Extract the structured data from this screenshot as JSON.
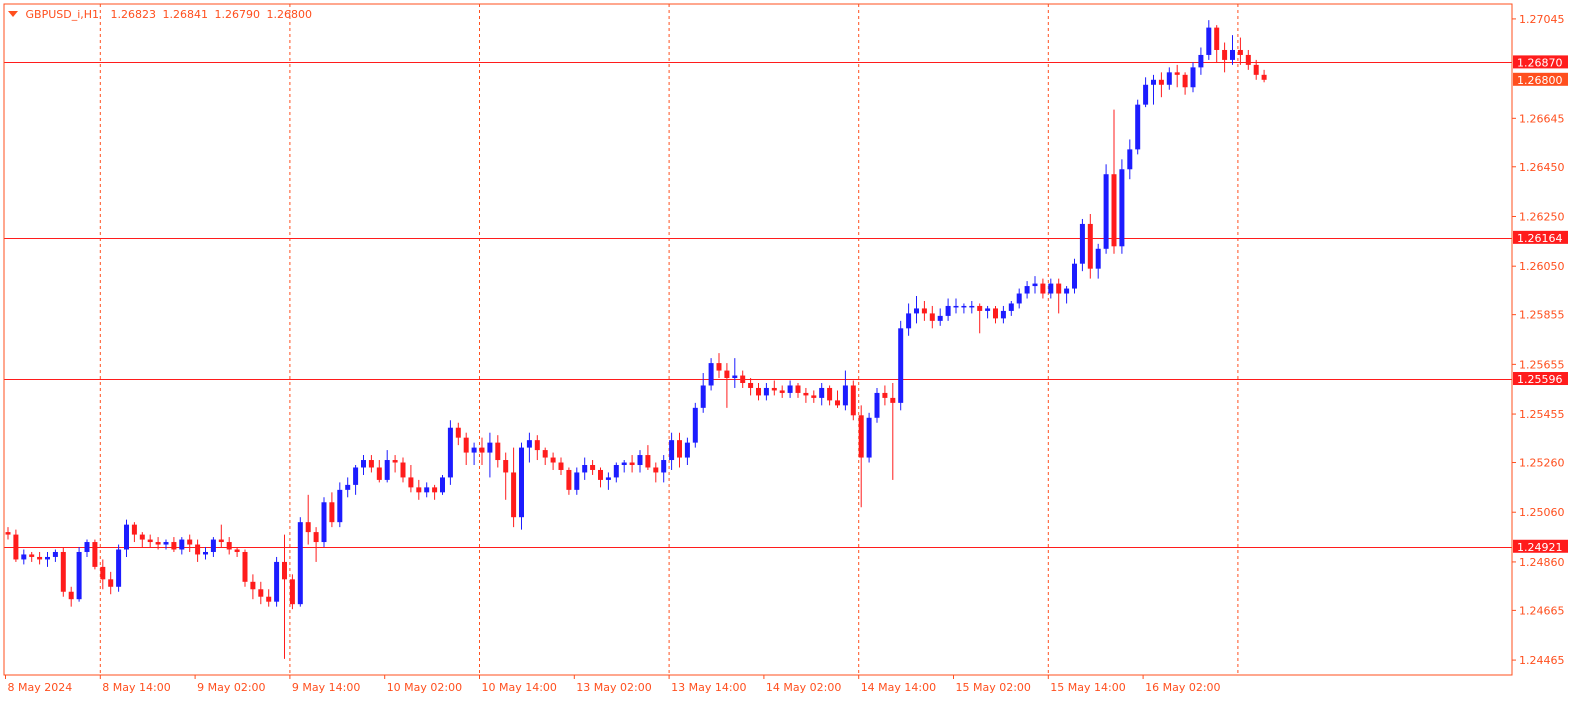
{
  "header": {
    "symbol": "GBPUSD_i,H1",
    "open": "1.26823",
    "high": "1.26841",
    "low": "1.26790",
    "close": "1.26800"
  },
  "colors": {
    "background": "#ffffff",
    "frame": "#ff4f1e",
    "grid": "#ff4f1e",
    "bull": "#1c1cff",
    "bear": "#ff1c1c",
    "axis_text": "#ff4f1e",
    "hline": "#ff1c1c",
    "price_tag": "#ff1c1c"
  },
  "chart_data": {
    "type": "candlestick",
    "timeframe": "H1",
    "ylim": [
      1.24405,
      1.27105
    ],
    "price_ticks": [
      "1.27045",
      "1.26645",
      "1.26450",
      "1.26250",
      "1.26050",
      "1.25855",
      "1.25655",
      "1.25455",
      "1.25260",
      "1.25060",
      "1.24860",
      "1.24665",
      "1.24465"
    ],
    "time_labels": [
      "8 May 2024",
      "8 May 14:00",
      "9 May 02:00",
      "9 May 14:00",
      "10 May 02:00",
      "10 May 14:00",
      "13 May 02:00",
      "13 May 14:00",
      "14 May 02:00",
      "14 May 14:00",
      "15 May 02:00",
      "15 May 14:00",
      "16 May 02:00"
    ],
    "vertical_grid_after_labels": [
      1,
      3,
      5,
      7,
      9,
      11,
      13
    ],
    "horizontal_levels": [
      "1.26870",
      "1.26164",
      "1.25596",
      "1.24921"
    ],
    "current_price": "1.26800",
    "candles": [
      [
        1.2498,
        1.25,
        1.2495,
        1.2497
      ],
      [
        1.2497,
        1.2499,
        1.2486,
        1.2487
      ],
      [
        1.2487,
        1.2491,
        1.2485,
        1.2489
      ],
      [
        1.2489,
        1.249,
        1.2486,
        1.2488
      ],
      [
        1.2488,
        1.249,
        1.2485,
        1.2487
      ],
      [
        1.2487,
        1.249,
        1.2484,
        1.2488
      ],
      [
        1.2488,
        1.2491,
        1.2486,
        1.249
      ],
      [
        1.249,
        1.2492,
        1.2472,
        1.2474
      ],
      [
        1.2474,
        1.2476,
        1.2468,
        1.2471
      ],
      [
        1.2471,
        1.2492,
        1.247,
        1.249
      ],
      [
        1.249,
        1.2495,
        1.2488,
        1.2494
      ],
      [
        1.2494,
        1.2495,
        1.2483,
        1.2484
      ],
      [
        1.2484,
        1.2487,
        1.2475,
        1.2479
      ],
      [
        1.2479,
        1.2482,
        1.2473,
        1.2476
      ],
      [
        1.2476,
        1.2493,
        1.2474,
        1.2491
      ],
      [
        1.2491,
        1.2503,
        1.2488,
        1.2501
      ],
      [
        1.2501,
        1.2502,
        1.2494,
        1.2497
      ],
      [
        1.2497,
        1.2498,
        1.2492,
        1.2495
      ],
      [
        1.2495,
        1.2497,
        1.2492,
        1.2494
      ],
      [
        1.2494,
        1.2496,
        1.2491,
        1.2493
      ],
      [
        1.2493,
        1.2495,
        1.2491,
        1.2494
      ],
      [
        1.2494,
        1.2496,
        1.249,
        1.2491
      ],
      [
        1.2491,
        1.2496,
        1.2489,
        1.2495
      ],
      [
        1.2495,
        1.2497,
        1.249,
        1.2493
      ],
      [
        1.2493,
        1.2495,
        1.2486,
        1.2489
      ],
      [
        1.2489,
        1.2492,
        1.2487,
        1.249
      ],
      [
        1.249,
        1.2496,
        1.2488,
        1.2495
      ],
      [
        1.2495,
        1.2501,
        1.2492,
        1.2494
      ],
      [
        1.2494,
        1.2496,
        1.2489,
        1.2491
      ],
      [
        1.2491,
        1.2492,
        1.2488,
        1.249
      ],
      [
        1.249,
        1.2491,
        1.2476,
        1.2478
      ],
      [
        1.2478,
        1.2481,
        1.2471,
        1.2475
      ],
      [
        1.2475,
        1.2478,
        1.2469,
        1.2472
      ],
      [
        1.2472,
        1.2475,
        1.2468,
        1.247
      ],
      [
        1.247,
        1.2488,
        1.2468,
        1.2486
      ],
      [
        1.2486,
        1.2497,
        1.2447,
        1.2479
      ],
      [
        1.2479,
        1.2481,
        1.2467,
        1.2469
      ],
      [
        1.2469,
        1.2504,
        1.2468,
        1.2502
      ],
      [
        1.2502,
        1.2513,
        1.2493,
        1.2498
      ],
      [
        1.2498,
        1.25,
        1.2486,
        1.2494
      ],
      [
        1.2494,
        1.2512,
        1.2492,
        1.251
      ],
      [
        1.251,
        1.2514,
        1.25,
        1.2502
      ],
      [
        1.2502,
        1.2518,
        1.25,
        1.2515
      ],
      [
        1.2515,
        1.252,
        1.2512,
        1.2517
      ],
      [
        1.2517,
        1.2525,
        1.2513,
        1.2524
      ],
      [
        1.2524,
        1.2529,
        1.2521,
        1.2527
      ],
      [
        1.2527,
        1.2529,
        1.2522,
        1.2524
      ],
      [
        1.2524,
        1.2527,
        1.2518,
        1.2519
      ],
      [
        1.2519,
        1.2531,
        1.2518,
        1.2527
      ],
      [
        1.2527,
        1.2529,
        1.2522,
        1.2526
      ],
      [
        1.2526,
        1.2528,
        1.2518,
        1.252
      ],
      [
        1.252,
        1.2525,
        1.2514,
        1.2516
      ],
      [
        1.2516,
        1.2519,
        1.2511,
        1.2514
      ],
      [
        1.2514,
        1.2518,
        1.2512,
        1.2516
      ],
      [
        1.2516,
        1.2517,
        1.2511,
        1.2514
      ],
      [
        1.2514,
        1.2521,
        1.2513,
        1.252
      ],
      [
        1.252,
        1.2543,
        1.2517,
        1.254
      ],
      [
        1.254,
        1.2542,
        1.2533,
        1.2536
      ],
      [
        1.2536,
        1.2538,
        1.2525,
        1.253
      ],
      [
        1.253,
        1.2534,
        1.2525,
        1.2532
      ],
      [
        1.2532,
        1.2536,
        1.2525,
        1.253
      ],
      [
        1.253,
        1.2538,
        1.252,
        1.2534
      ],
      [
        1.2534,
        1.2537,
        1.2524,
        1.2527
      ],
      [
        1.2527,
        1.253,
        1.2511,
        1.2522
      ],
      [
        1.2522,
        1.2532,
        1.25,
        1.2504
      ],
      [
        1.2504,
        1.2534,
        1.2499,
        1.2532
      ],
      [
        1.2532,
        1.2538,
        1.2526,
        1.2535
      ],
      [
        1.2535,
        1.2537,
        1.2527,
        1.2531
      ],
      [
        1.2531,
        1.2532,
        1.2525,
        1.2528
      ],
      [
        1.2528,
        1.253,
        1.2523,
        1.2526
      ],
      [
        1.2526,
        1.2528,
        1.2521,
        1.2523
      ],
      [
        1.2523,
        1.2524,
        1.2513,
        1.2515
      ],
      [
        1.2515,
        1.2524,
        1.2513,
        1.2522
      ],
      [
        1.2522,
        1.2528,
        1.2519,
        1.2525
      ],
      [
        1.2525,
        1.2527,
        1.2521,
        1.2523
      ],
      [
        1.2523,
        1.2524,
        1.2516,
        1.2519
      ],
      [
        1.2519,
        1.2522,
        1.2515,
        1.252
      ],
      [
        1.252,
        1.2526,
        1.2518,
        1.2525
      ],
      [
        1.2525,
        1.2527,
        1.2522,
        1.2526
      ],
      [
        1.2526,
        1.2529,
        1.2522,
        1.2525
      ],
      [
        1.2525,
        1.2531,
        1.2522,
        1.2529
      ],
      [
        1.2529,
        1.2533,
        1.2523,
        1.2524
      ],
      [
        1.2524,
        1.2526,
        1.2518,
        1.2522
      ],
      [
        1.2522,
        1.2529,
        1.2518,
        1.2527
      ],
      [
        1.2527,
        1.2538,
        1.2523,
        1.2535
      ],
      [
        1.2535,
        1.2538,
        1.2524,
        1.2528
      ],
      [
        1.2528,
        1.2536,
        1.2525,
        1.2534
      ],
      [
        1.2534,
        1.255,
        1.2532,
        1.2548
      ],
      [
        1.2548,
        1.2562,
        1.2546,
        1.2557
      ],
      [
        1.2557,
        1.2568,
        1.2555,
        1.2566
      ],
      [
        1.2566,
        1.257,
        1.256,
        1.2563
      ],
      [
        1.2563,
        1.2566,
        1.2548,
        1.256
      ],
      [
        1.256,
        1.2568,
        1.2556,
        1.2561
      ],
      [
        1.2561,
        1.2563,
        1.2556,
        1.2558
      ],
      [
        1.2558,
        1.256,
        1.2553,
        1.2556
      ],
      [
        1.2556,
        1.2558,
        1.2551,
        1.2553
      ],
      [
        1.2553,
        1.2558,
        1.2551,
        1.2556
      ],
      [
        1.2556,
        1.2559,
        1.2553,
        1.2555
      ],
      [
        1.2555,
        1.2557,
        1.2552,
        1.2554
      ],
      [
        1.2554,
        1.2559,
        1.2552,
        1.2557
      ],
      [
        1.2557,
        1.2558,
        1.2552,
        1.2554
      ],
      [
        1.2554,
        1.2556,
        1.255,
        1.2553
      ],
      [
        1.2553,
        1.2555,
        1.255,
        1.2552
      ],
      [
        1.2552,
        1.2558,
        1.2549,
        1.2556
      ],
      [
        1.2556,
        1.2557,
        1.2549,
        1.2551
      ],
      [
        1.2551,
        1.2555,
        1.2548,
        1.2549
      ],
      [
        1.2549,
        1.2563,
        1.2547,
        1.2557
      ],
      [
        1.2557,
        1.2559,
        1.2543,
        1.2545
      ],
      [
        1.2545,
        1.2549,
        1.2508,
        1.2528
      ],
      [
        1.2528,
        1.2546,
        1.2526,
        1.2544
      ],
      [
        1.2544,
        1.2556,
        1.2542,
        1.2554
      ],
      [
        1.2554,
        1.2557,
        1.2549,
        1.2552
      ],
      [
        1.2552,
        1.2558,
        1.2519,
        1.255
      ],
      [
        1.255,
        1.2583,
        1.2547,
        1.258
      ],
      [
        1.258,
        1.259,
        1.2577,
        1.2586
      ],
      [
        1.2586,
        1.2593,
        1.2582,
        1.2588
      ],
      [
        1.2588,
        1.2591,
        1.2583,
        1.2586
      ],
      [
        1.2586,
        1.2589,
        1.258,
        1.2583
      ],
      [
        1.2583,
        1.2588,
        1.2581,
        1.2585
      ],
      [
        1.2585,
        1.2592,
        1.2583,
        1.2589
      ],
      [
        1.2589,
        1.2592,
        1.2586,
        1.2589
      ],
      [
        1.2589,
        1.259,
        1.2586,
        1.2589
      ],
      [
        1.2589,
        1.2591,
        1.2586,
        1.2589
      ],
      [
        1.2589,
        1.259,
        1.2578,
        1.2587
      ],
      [
        1.2587,
        1.2589,
        1.2584,
        1.2588
      ],
      [
        1.2588,
        1.2589,
        1.2582,
        1.2584
      ],
      [
        1.2584,
        1.2589,
        1.2582,
        1.2587
      ],
      [
        1.2587,
        1.2591,
        1.2585,
        1.259
      ],
      [
        1.259,
        1.2596,
        1.2588,
        1.2594
      ],
      [
        1.2594,
        1.2599,
        1.2592,
        1.2597
      ],
      [
        1.2597,
        1.2601,
        1.2594,
        1.2598
      ],
      [
        1.2598,
        1.26,
        1.2592,
        1.2594
      ],
      [
        1.2594,
        1.26,
        1.2592,
        1.2598
      ],
      [
        1.2598,
        1.26,
        1.2586,
        1.2594
      ],
      [
        1.2594,
        1.2597,
        1.259,
        1.2596
      ],
      [
        1.2596,
        1.2608,
        1.2594,
        1.2606
      ],
      [
        1.2606,
        1.2624,
        1.2603,
        1.2622
      ],
      [
        1.2622,
        1.2626,
        1.26,
        1.2604
      ],
      [
        1.2604,
        1.2614,
        1.26,
        1.2612
      ],
      [
        1.2612,
        1.2646,
        1.261,
        1.2642
      ],
      [
        1.2642,
        1.2668,
        1.261,
        1.2613
      ],
      [
        1.2613,
        1.2648,
        1.261,
        1.2644
      ],
      [
        1.2644,
        1.2656,
        1.264,
        1.2652
      ],
      [
        1.2652,
        1.2672,
        1.265,
        1.267
      ],
      [
        1.267,
        1.2681,
        1.2669,
        1.2678
      ],
      [
        1.2678,
        1.2682,
        1.267,
        1.268
      ],
      [
        1.268,
        1.2683,
        1.2673,
        1.2678
      ],
      [
        1.2678,
        1.2685,
        1.2676,
        1.2683
      ],
      [
        1.2683,
        1.2686,
        1.2677,
        1.2682
      ],
      [
        1.2682,
        1.2683,
        1.2674,
        1.2677
      ],
      [
        1.2677,
        1.2687,
        1.2675,
        1.2685
      ],
      [
        1.2685,
        1.2693,
        1.2682,
        1.269
      ],
      [
        1.269,
        1.2704,
        1.2688,
        1.2701
      ],
      [
        1.2701,
        1.2702,
        1.2687,
        1.2692
      ],
      [
        1.2692,
        1.2695,
        1.2683,
        1.2688
      ],
      [
        1.2688,
        1.2698,
        1.2686,
        1.2692
      ],
      [
        1.2692,
        1.2697,
        1.2686,
        1.269
      ],
      [
        1.269,
        1.2692,
        1.2684,
        1.2686
      ],
      [
        1.2686,
        1.2688,
        1.268,
        1.2682
      ],
      [
        1.2682,
        1.2684,
        1.2679,
        1.268
      ]
    ]
  }
}
